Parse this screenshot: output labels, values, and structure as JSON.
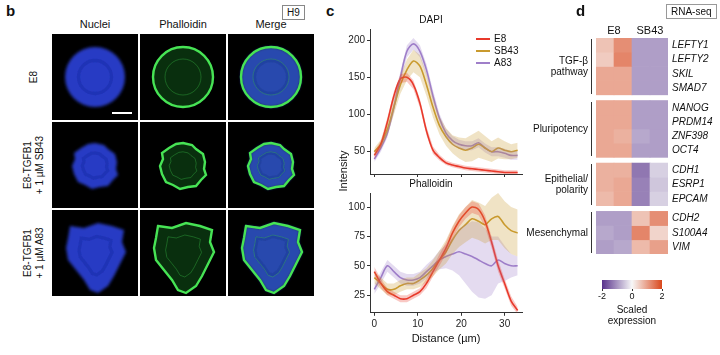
{
  "panel_b": {
    "letter": "b",
    "cell_line": "H9",
    "columns": [
      "Nuclei",
      "Phalloidin",
      "Merge"
    ],
    "rows": [
      [
        "E8"
      ],
      [
        "E8-TGFB1",
        "+ 1 µM SB43"
      ],
      [
        "E8-TGFB1",
        "+ 1 µM A83"
      ]
    ]
  },
  "chart_data": [
    {
      "panel": "c",
      "type": "line",
      "title": "DAPI",
      "ylabel": "Intensity",
      "x": [
        0,
        1.5,
        3,
        4.5,
        6,
        7.5,
        9,
        10.5,
        12,
        13.5,
        15,
        16.5,
        18,
        19.5,
        21,
        22.5,
        24,
        25.5,
        27,
        28.5,
        30,
        31.5,
        33
      ],
      "xlim": [
        -1,
        34
      ],
      "xticks": [
        0,
        10,
        20,
        30
      ],
      "ylim": [
        20,
        215
      ],
      "yticks": [
        50,
        100,
        150,
        200
      ],
      "grid": false,
      "legend": "upper right",
      "tick_labels": "y",
      "series": [
        {
          "name": "E8",
          "color": "#e8392b",
          "values": [
            45,
            60,
            90,
            125,
            148,
            150,
            140,
            115,
            78,
            52,
            42,
            35,
            32,
            30,
            28,
            27,
            26,
            25,
            24,
            23,
            22,
            22,
            22
          ],
          "error": [
            5,
            5,
            6,
            6,
            6,
            6,
            6,
            6,
            6,
            5,
            4,
            3,
            3,
            3,
            3,
            3,
            3,
            3,
            3,
            3,
            3,
            3,
            3
          ]
        },
        {
          "name": "SB43",
          "color": "#c99a2e",
          "values": [
            50,
            60,
            80,
            110,
            140,
            160,
            172,
            165,
            140,
            110,
            85,
            70,
            60,
            55,
            52,
            55,
            60,
            55,
            50,
            55,
            52,
            50,
            52
          ],
          "error": [
            5,
            6,
            8,
            10,
            12,
            14,
            15,
            15,
            15,
            14,
            12,
            12,
            12,
            14,
            16,
            18,
            18,
            16,
            14,
            14,
            12,
            10,
            10
          ]
        },
        {
          "name": "A83",
          "color": "#9f7fc9",
          "values": [
            40,
            55,
            75,
            110,
            150,
            185,
            195,
            185,
            160,
            125,
            95,
            75,
            65,
            60,
            58,
            58,
            62,
            55,
            50,
            50,
            48,
            45,
            45
          ],
          "error": [
            4,
            5,
            6,
            8,
            8,
            8,
            8,
            8,
            8,
            8,
            6,
            6,
            6,
            6,
            6,
            6,
            6,
            6,
            6,
            6,
            6,
            6,
            6
          ]
        }
      ]
    },
    {
      "panel": "c",
      "type": "line",
      "title": "Phalloidin",
      "xlabel": "Distance (µm)",
      "x": [
        0,
        1.5,
        3,
        4.5,
        6,
        7.5,
        9,
        10.5,
        12,
        13.5,
        15,
        16.5,
        18,
        19.5,
        21,
        22.5,
        24,
        25.5,
        27,
        28.5,
        30,
        31.5,
        33
      ],
      "xlim": [
        -1,
        34
      ],
      "xticks": [
        0,
        10,
        20,
        30
      ],
      "ylim": [
        10,
        112
      ],
      "yticks": [
        25,
        50,
        75,
        100
      ],
      "grid": false,
      "series": [
        {
          "name": "E8",
          "color": "#e8392b",
          "values": [
            45,
            35,
            28,
            25,
            22,
            22,
            25,
            28,
            35,
            45,
            55,
            65,
            78,
            88,
            95,
            100,
            98,
            88,
            70,
            50,
            35,
            20,
            12
          ],
          "error": [
            4,
            4,
            3,
            3,
            3,
            3,
            3,
            3,
            4,
            4,
            5,
            5,
            5,
            5,
            5,
            5,
            5,
            5,
            5,
            5,
            4,
            4,
            3
          ]
        },
        {
          "name": "SB43",
          "color": "#c99a2e",
          "values": [
            40,
            35,
            30,
            30,
            33,
            35,
            35,
            38,
            42,
            48,
            55,
            62,
            72,
            80,
            85,
            90,
            88,
            85,
            90,
            92,
            85,
            80,
            78
          ],
          "error": [
            5,
            5,
            5,
            5,
            5,
            5,
            5,
            6,
            6,
            7,
            8,
            10,
            12,
            14,
            15,
            16,
            16,
            16,
            18,
            20,
            20,
            20,
            20
          ]
        },
        {
          "name": "A83",
          "color": "#9f7fc9",
          "values": [
            30,
            40,
            50,
            45,
            40,
            38,
            38,
            40,
            45,
            50,
            55,
            58,
            60,
            62,
            60,
            58,
            55,
            52,
            50,
            55,
            52,
            50,
            50
          ],
          "error": [
            4,
            5,
            5,
            5,
            5,
            5,
            5,
            5,
            6,
            6,
            8,
            10,
            14,
            20,
            25,
            30,
            32,
            30,
            25,
            20,
            15,
            10,
            8
          ]
        }
      ]
    },
    {
      "panel": "d",
      "type": "heatmap",
      "title": "RNA-seq",
      "columns": [
        "E8",
        "E8",
        "SB43",
        "SB43"
      ],
      "groups": [
        {
          "label": [
            "TGF-β",
            "pathway"
          ],
          "rows": [
            "LEFTY1",
            "LEFTY2",
            "SKIL",
            "SMAD7"
          ],
          "values": [
            [
              0.6,
              1.2,
              -0.9,
              -0.9
            ],
            [
              0.5,
              1.3,
              -0.9,
              -0.9
            ],
            [
              0.9,
              0.9,
              -0.9,
              -0.9
            ],
            [
              0.9,
              0.9,
              -0.9,
              -0.9
            ]
          ]
        },
        {
          "label": [
            "Pluripotency"
          ],
          "rows": [
            "NANOG",
            "PRDM14",
            "ZNF398",
            "OCT4"
          ],
          "values": [
            [
              0.9,
              0.9,
              -0.9,
              -0.9
            ],
            [
              0.9,
              0.9,
              -0.9,
              -0.9
            ],
            [
              0.9,
              0.8,
              -0.8,
              -0.9
            ],
            [
              0.9,
              0.9,
              -0.9,
              -0.9
            ]
          ]
        },
        {
          "label": [
            "Epithelial/",
            "polarity"
          ],
          "rows": [
            "CDH1",
            "ESRP1",
            "EPCAM"
          ],
          "values": [
            [
              0.8,
              0.8,
              -1.3,
              -0.4
            ],
            [
              0.8,
              0.9,
              -1.2,
              -0.5
            ],
            [
              0.7,
              0.9,
              -1.2,
              -0.4
            ]
          ]
        },
        {
          "label": [
            "Mesenchymal"
          ],
          "rows": [
            "CDH2",
            "S100A4",
            "VIM"
          ],
          "values": [
            [
              -0.9,
              -0.9,
              0.6,
              1.2
            ],
            [
              -0.8,
              -0.9,
              1.3,
              0.4
            ],
            [
              -0.9,
              -0.8,
              0.7,
              1.0
            ]
          ]
        }
      ],
      "colorbar": {
        "label": [
          "Scaled",
          "expression"
        ],
        "range": [
          -2,
          2
        ],
        "ticks": [
          -2,
          0,
          2
        ]
      }
    }
  ]
}
